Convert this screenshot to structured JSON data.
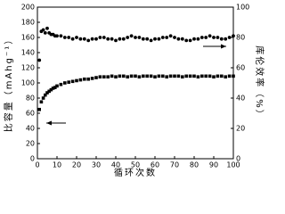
{
  "chart_data": {
    "type": "scatter",
    "x_label": "循环次数",
    "y_label": "比容量（mAhg⁻¹）",
    "y2_label": "库伦效率（%）",
    "x": [
      1,
      2,
      3,
      4,
      5,
      6,
      7,
      8,
      9,
      10,
      12,
      14,
      16,
      18,
      20,
      22,
      24,
      26,
      28,
      30,
      32,
      34,
      36,
      38,
      40,
      42,
      44,
      46,
      48,
      50,
      52,
      54,
      56,
      58,
      60,
      62,
      64,
      66,
      68,
      70,
      72,
      74,
      76,
      78,
      80,
      82,
      84,
      86,
      88,
      90,
      92,
      94,
      96,
      98,
      100
    ],
    "series": [
      {
        "color": "#000000",
        "marker": "square",
        "values": [
          65,
          75,
          80,
          84,
          87,
          89,
          91,
          93,
          94,
          96,
          98,
          100,
          101,
          102,
          103,
          104,
          105,
          105,
          106,
          107,
          108,
          108,
          108,
          109,
          108,
          109,
          109,
          108,
          109,
          109,
          108,
          109,
          109,
          109,
          108,
          109,
          109,
          108,
          109,
          109,
          109,
          108,
          109,
          109,
          109,
          108,
          109,
          109,
          109,
          108,
          109,
          109,
          108,
          109,
          109
        ]
      },
      {
        "color": "#000000",
        "marker": "circle",
        "axis": "y2",
        "values": [
          65,
          84,
          85,
          83,
          86,
          83,
          82,
          82,
          81,
          81,
          81,
          80,
          80,
          79,
          80,
          79,
          79,
          78,
          79,
          79,
          80,
          80,
          79,
          79,
          78,
          79,
          79,
          80,
          81,
          80,
          80,
          79,
          79,
          78,
          79,
          79,
          80,
          80,
          81,
          80,
          79,
          79,
          78,
          78,
          79,
          79,
          80,
          80,
          81,
          80,
          80,
          79,
          79,
          80,
          81
        ]
      }
    ],
    "xlim": [
      0,
      100
    ],
    "xticks": [
      0,
      10,
      20,
      30,
      40,
      50,
      60,
      70,
      80,
      90,
      100
    ],
    "ylim": [
      0,
      200
    ],
    "yticks": [
      0,
      20,
      40,
      60,
      80,
      100,
      120,
      140,
      160,
      180,
      200
    ],
    "y2lim": [
      0,
      100
    ],
    "y2ticks": [
      0,
      20,
      40,
      60,
      80,
      100
    ]
  }
}
